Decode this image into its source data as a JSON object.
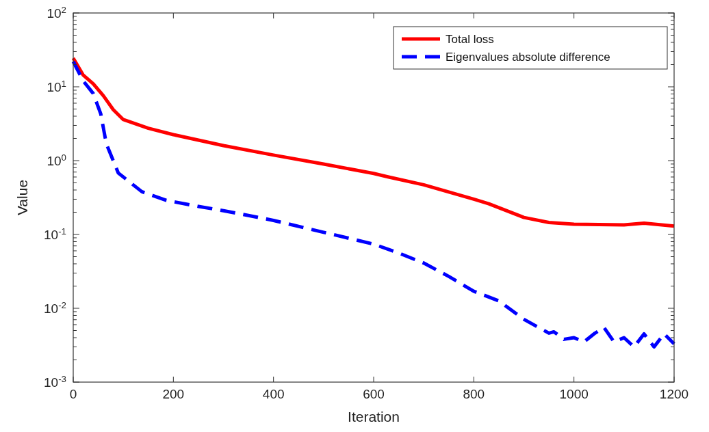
{
  "chart_data": {
    "type": "line",
    "xlabel": "Iteration",
    "ylabel": "Value",
    "log": "y",
    "xlim": [
      0,
      1200
    ],
    "xticks": [
      0,
      200,
      400,
      600,
      800,
      1000,
      1200
    ],
    "ylim": [
      0.001,
      100
    ],
    "yticks": [
      {
        "value": 0.001,
        "label": "10$^{-3}$"
      },
      {
        "value": 0.01,
        "label": "10$^{-2}$"
      },
      {
        "value": 0.1,
        "label": "10$^{-1}$"
      },
      {
        "value": 1,
        "label": "10$^{0}$"
      },
      {
        "value": 10,
        "label": "10$^{1}$"
      },
      {
        "value": 100,
        "label": "10$^{2}$"
      }
    ],
    "grid": false,
    "legend": "top right",
    "series": [
      {
        "name": "Total loss",
        "color": "#ff0000",
        "line_style": "solid",
        "x": [
          0,
          20,
          40,
          60,
          80,
          100,
          150,
          200,
          300,
          400,
          500,
          600,
          630,
          700,
          800,
          830,
          900,
          950,
          1000,
          1100,
          1140,
          1200
        ],
        "values": [
          24.5,
          14.4,
          11,
          7.6,
          4.9,
          3.6,
          2.75,
          2.25,
          1.6,
          1.19,
          0.9,
          0.67,
          0.6,
          0.47,
          0.3,
          0.26,
          0.17,
          0.145,
          0.138,
          0.135,
          0.142,
          0.13
        ]
      },
      {
        "name": "Eigenvalues absolute difference",
        "color": "#0000ff",
        "line_style": "dashed",
        "x": [
          0,
          20,
          40,
          55,
          66,
          90,
          137,
          186,
          250,
          300,
          400,
          500,
          600,
          650,
          700,
          750,
          800,
          850,
          900,
          950,
          960,
          980,
          1000,
          1020,
          1040,
          1060,
          1080,
          1100,
          1120,
          1140,
          1160,
          1180,
          1200
        ],
        "values": [
          22,
          12,
          8.1,
          4.3,
          1.7,
          0.68,
          0.38,
          0.29,
          0.24,
          0.21,
          0.155,
          0.107,
          0.074,
          0.056,
          0.041,
          0.027,
          0.017,
          0.0126,
          0.0071,
          0.0046,
          0.0048,
          0.0038,
          0.004,
          0.0035,
          0.0045,
          0.0055,
          0.0035,
          0.004,
          0.003,
          0.0045,
          0.003,
          0.0045,
          0.0033
        ]
      }
    ]
  }
}
